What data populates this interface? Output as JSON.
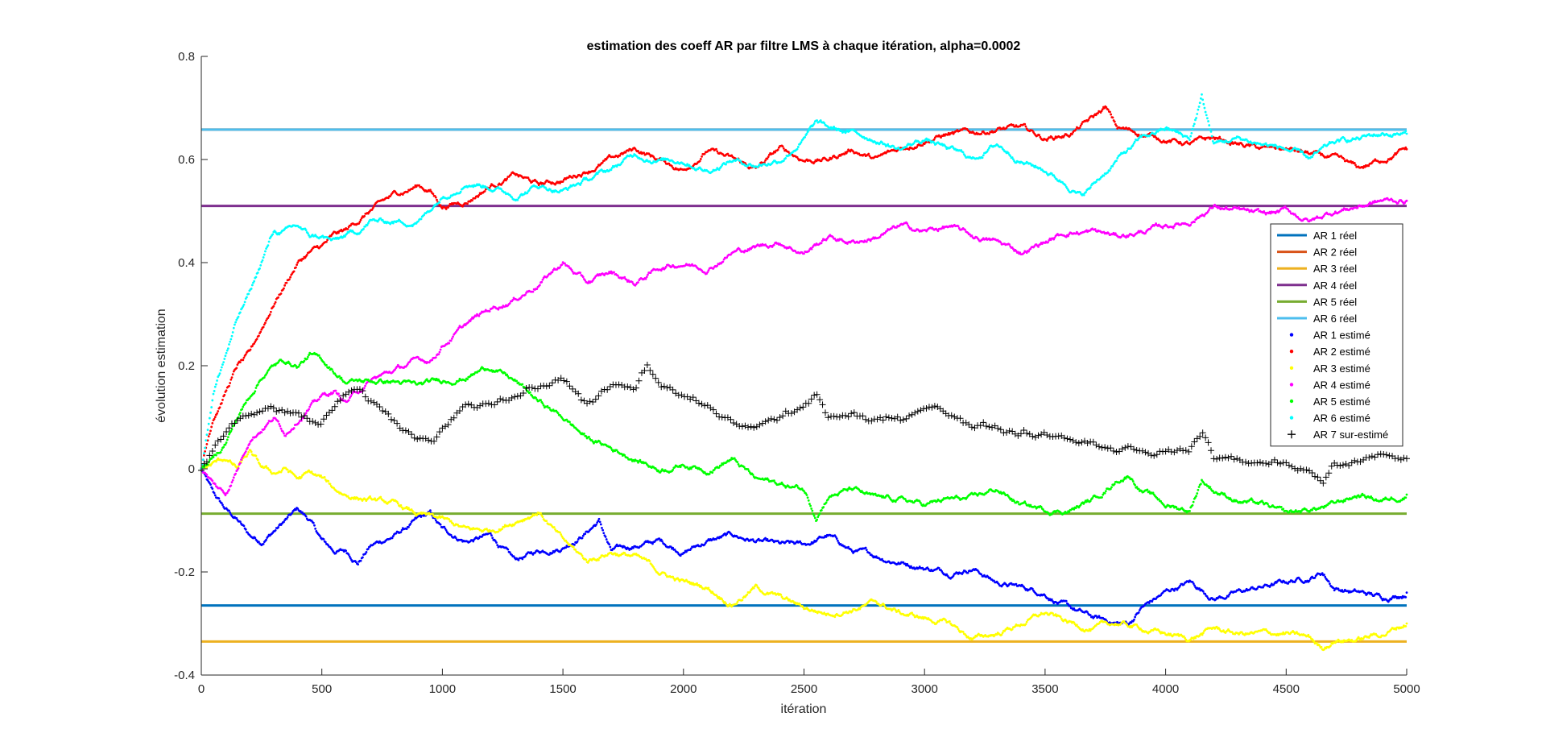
{
  "chart_data": {
    "type": "line",
    "title": "estimation des coeff AR par filtre LMS à chaque itération, alpha=0.0002",
    "xlabel": "itération",
    "ylabel": "évolution estimation",
    "xlim": [
      0,
      5000
    ],
    "ylim": [
      -0.4,
      0.8
    ],
    "xticks": [
      0,
      500,
      1000,
      1500,
      2000,
      2500,
      3000,
      3500,
      4000,
      4500,
      5000
    ],
    "yticks": [
      -0.4,
      -0.2,
      0,
      0.2,
      0.4,
      0.6,
      0.8
    ],
    "grid": false,
    "legend_position": "right",
    "true_lines": [
      {
        "name": "AR 1 réel",
        "value": -0.265,
        "color": "#0072BD"
      },
      {
        "name": "AR 2 réel",
        "value": 0.658,
        "color": "#D95319"
      },
      {
        "name": "AR 3 réel",
        "value": -0.335,
        "color": "#EDB120"
      },
      {
        "name": "AR 4 réel",
        "value": 0.51,
        "color": "#7E2F8E"
      },
      {
        "name": "AR 5 réel",
        "value": -0.087,
        "color": "#77AC30"
      },
      {
        "name": "AR 6 réel",
        "value": 0.658,
        "color": "#4DBEEE"
      }
    ],
    "estimated_series": [
      {
        "name": "AR 1 estimé",
        "color": "#0000FF",
        "marker": "dot",
        "x": [
          0,
          50,
          100,
          150,
          200,
          250,
          300,
          350,
          400,
          450,
          500,
          550,
          600,
          650,
          700,
          800,
          900,
          950,
          1000,
          1100,
          1200,
          1300,
          1400,
          1500,
          1600,
          1650,
          1700,
          1800,
          1900,
          2000,
          2100,
          2200,
          2300,
          2400,
          2500,
          2600,
          2700,
          2800,
          2900,
          3000,
          3100,
          3200,
          3300,
          3400,
          3500,
          3600,
          3700,
          3800,
          3850,
          3900,
          4000,
          4100,
          4200,
          4300,
          4400,
          4500,
          4600,
          4650,
          4700,
          4800,
          4900,
          5000
        ],
        "y": [
          0,
          -0.05,
          -0.08,
          -0.1,
          -0.13,
          -0.14,
          -0.12,
          -0.1,
          -0.08,
          -0.1,
          -0.14,
          -0.16,
          -0.16,
          -0.18,
          -0.15,
          -0.13,
          -0.1,
          -0.09,
          -0.12,
          -0.14,
          -0.13,
          -0.18,
          -0.16,
          -0.15,
          -0.12,
          -0.1,
          -0.16,
          -0.15,
          -0.14,
          -0.16,
          -0.14,
          -0.13,
          -0.14,
          -0.15,
          -0.15,
          -0.13,
          -0.16,
          -0.17,
          -0.18,
          -0.19,
          -0.2,
          -0.19,
          -0.22,
          -0.23,
          -0.24,
          -0.27,
          -0.29,
          -0.3,
          -0.3,
          -0.27,
          -0.24,
          -0.22,
          -0.25,
          -0.24,
          -0.23,
          -0.22,
          -0.21,
          -0.2,
          -0.23,
          -0.24,
          -0.25,
          -0.24
        ]
      },
      {
        "name": "AR 2 estimé",
        "color": "#FF0000",
        "marker": "dot",
        "x": [
          0,
          50,
          100,
          150,
          200,
          250,
          300,
          350,
          400,
          450,
          500,
          550,
          600,
          650,
          700,
          800,
          900,
          950,
          1000,
          1100,
          1200,
          1300,
          1400,
          1500,
          1600,
          1700,
          1800,
          1900,
          2000,
          2100,
          2200,
          2300,
          2400,
          2500,
          2600,
          2700,
          2800,
          2900,
          3000,
          3100,
          3200,
          3300,
          3400,
          3500,
          3600,
          3700,
          3750,
          3800,
          3900,
          4000,
          4100,
          4200,
          4300,
          4400,
          4500,
          4600,
          4700,
          4800,
          4850,
          4900,
          5000
        ],
        "y": [
          0,
          0.1,
          0.15,
          0.2,
          0.22,
          0.27,
          0.32,
          0.36,
          0.4,
          0.42,
          0.43,
          0.45,
          0.46,
          0.48,
          0.5,
          0.53,
          0.55,
          0.54,
          0.51,
          0.52,
          0.55,
          0.57,
          0.55,
          0.56,
          0.58,
          0.6,
          0.62,
          0.6,
          0.58,
          0.62,
          0.6,
          0.58,
          0.62,
          0.6,
          0.6,
          0.62,
          0.6,
          0.62,
          0.64,
          0.65,
          0.65,
          0.66,
          0.66,
          0.64,
          0.65,
          0.68,
          0.7,
          0.66,
          0.65,
          0.64,
          0.63,
          0.64,
          0.63,
          0.62,
          0.62,
          0.61,
          0.6,
          0.58,
          0.59,
          0.6,
          0.62
        ]
      },
      {
        "name": "AR 3 estimé",
        "color": "#FFFF00",
        "marker": "dot",
        "x": [
          0,
          50,
          100,
          150,
          200,
          250,
          300,
          350,
          400,
          450,
          500,
          550,
          600,
          700,
          800,
          900,
          1000,
          1100,
          1200,
          1300,
          1400,
          1500,
          1600,
          1700,
          1800,
          1900,
          2000,
          2100,
          2200,
          2300,
          2400,
          2500,
          2600,
          2700,
          2800,
          2900,
          3000,
          3100,
          3200,
          3300,
          3400,
          3500,
          3600,
          3700,
          3800,
          3900,
          4000,
          4100,
          4200,
          4300,
          4400,
          4500,
          4600,
          4650,
          4700,
          4800,
          4900,
          5000
        ],
        "y": [
          0,
          0.01,
          0.02,
          0.0,
          0.03,
          0.0,
          -0.01,
          0.0,
          -0.02,
          -0.01,
          -0.02,
          -0.04,
          -0.05,
          -0.06,
          -0.07,
          -0.09,
          -0.1,
          -0.12,
          -0.12,
          -0.1,
          -0.08,
          -0.14,
          -0.18,
          -0.16,
          -0.17,
          -0.2,
          -0.22,
          -0.23,
          -0.26,
          -0.23,
          -0.25,
          -0.27,
          -0.28,
          -0.27,
          -0.26,
          -0.28,
          -0.29,
          -0.3,
          -0.33,
          -0.32,
          -0.3,
          -0.28,
          -0.3,
          -0.31,
          -0.3,
          -0.31,
          -0.32,
          -0.33,
          -0.31,
          -0.32,
          -0.32,
          -0.32,
          -0.33,
          -0.35,
          -0.33,
          -0.33,
          -0.32,
          -0.3
        ]
      },
      {
        "name": "AR 4 estimé",
        "color": "#FF00FF",
        "marker": "dot",
        "x": [
          0,
          50,
          100,
          150,
          200,
          250,
          300,
          350,
          400,
          450,
          500,
          550,
          600,
          700,
          800,
          900,
          950,
          1000,
          1100,
          1200,
          1300,
          1400,
          1500,
          1600,
          1700,
          1800,
          1900,
          2000,
          2100,
          2200,
          2300,
          2400,
          2500,
          2600,
          2700,
          2800,
          2900,
          3000,
          3100,
          3200,
          3300,
          3400,
          3500,
          3600,
          3700,
          3800,
          3900,
          4000,
          4100,
          4200,
          4300,
          4400,
          4500,
          4600,
          4700,
          4800,
          4900,
          5000
        ],
        "y": [
          0,
          -0.03,
          -0.05,
          0.0,
          0.06,
          0.08,
          0.1,
          0.07,
          0.1,
          0.12,
          0.14,
          0.15,
          0.13,
          0.17,
          0.19,
          0.21,
          0.21,
          0.24,
          0.28,
          0.31,
          0.33,
          0.36,
          0.4,
          0.36,
          0.38,
          0.36,
          0.39,
          0.4,
          0.39,
          0.42,
          0.43,
          0.44,
          0.42,
          0.45,
          0.44,
          0.45,
          0.47,
          0.46,
          0.47,
          0.45,
          0.44,
          0.42,
          0.44,
          0.46,
          0.46,
          0.45,
          0.46,
          0.47,
          0.48,
          0.51,
          0.5,
          0.49,
          0.5,
          0.48,
          0.5,
          0.51,
          0.52,
          0.52
        ]
      },
      {
        "name": "AR 5 estimé",
        "color": "#00FF00",
        "marker": "dot",
        "x": [
          0,
          50,
          100,
          150,
          200,
          250,
          300,
          350,
          400,
          450,
          500,
          550,
          600,
          700,
          800,
          900,
          1000,
          1100,
          1200,
          1300,
          1400,
          1500,
          1600,
          1700,
          1800,
          1900,
          2000,
          2100,
          2200,
          2300,
          2400,
          2500,
          2550,
          2600,
          2700,
          2800,
          2900,
          3000,
          3100,
          3200,
          3300,
          3400,
          3500,
          3600,
          3700,
          3800,
          3850,
          3900,
          4000,
          4100,
          4150,
          4200,
          4300,
          4400,
          4500,
          4600,
          4700,
          4800,
          4900,
          5000
        ],
        "y": [
          0,
          0.02,
          0.05,
          0.1,
          0.14,
          0.18,
          0.2,
          0.21,
          0.2,
          0.22,
          0.21,
          0.19,
          0.17,
          0.17,
          0.17,
          0.16,
          0.17,
          0.18,
          0.2,
          0.17,
          0.13,
          0.1,
          0.06,
          0.04,
          0.02,
          0.0,
          0.01,
          0.0,
          0.02,
          -0.02,
          -0.03,
          -0.04,
          -0.09,
          -0.05,
          -0.04,
          -0.06,
          -0.06,
          -0.07,
          -0.06,
          -0.06,
          -0.04,
          -0.07,
          -0.08,
          -0.08,
          -0.06,
          -0.02,
          -0.01,
          -0.04,
          -0.07,
          -0.08,
          -0.02,
          -0.04,
          -0.06,
          -0.07,
          -0.09,
          -0.08,
          -0.07,
          -0.05,
          -0.06,
          -0.05
        ]
      },
      {
        "name": "AR 6 estimé",
        "color": "#00FFFF",
        "marker": "dot",
        "x": [
          0,
          50,
          100,
          150,
          200,
          250,
          300,
          350,
          400,
          450,
          500,
          550,
          600,
          650,
          700,
          800,
          900,
          1000,
          1100,
          1200,
          1300,
          1400,
          1500,
          1600,
          1700,
          1800,
          1900,
          2000,
          2100,
          2200,
          2300,
          2400,
          2500,
          2550,
          2600,
          2700,
          2800,
          2900,
          3000,
          3100,
          3200,
          3300,
          3400,
          3500,
          3600,
          3650,
          3700,
          3800,
          3900,
          4000,
          4100,
          4150,
          4200,
          4300,
          4400,
          4500,
          4600,
          4700,
          4800,
          4900,
          5000
        ],
        "y": [
          0,
          0.15,
          0.22,
          0.29,
          0.34,
          0.4,
          0.46,
          0.46,
          0.47,
          0.45,
          0.45,
          0.44,
          0.45,
          0.46,
          0.48,
          0.48,
          0.48,
          0.53,
          0.56,
          0.55,
          0.53,
          0.55,
          0.54,
          0.56,
          0.58,
          0.61,
          0.6,
          0.6,
          0.58,
          0.6,
          0.59,
          0.6,
          0.64,
          0.67,
          0.66,
          0.65,
          0.64,
          0.62,
          0.64,
          0.62,
          0.6,
          0.63,
          0.6,
          0.58,
          0.55,
          0.53,
          0.55,
          0.6,
          0.64,
          0.66,
          0.64,
          0.72,
          0.63,
          0.64,
          0.63,
          0.62,
          0.6,
          0.63,
          0.64,
          0.65,
          0.65
        ]
      },
      {
        "name": "AR 7 sur-estimé",
        "color": "#000000",
        "marker": "plus",
        "x": [
          0,
          50,
          100,
          150,
          200,
          250,
          300,
          350,
          400,
          450,
          500,
          550,
          600,
          650,
          700,
          800,
          900,
          950,
          1000,
          1100,
          1200,
          1300,
          1400,
          1500,
          1600,
          1700,
          1800,
          1850,
          1900,
          2000,
          2100,
          2200,
          2300,
          2400,
          2500,
          2550,
          2600,
          2700,
          2800,
          2900,
          3000,
          3050,
          3100,
          3200,
          3300,
          3400,
          3500,
          3600,
          3700,
          3800,
          3900,
          4000,
          4100,
          4150,
          4200,
          4300,
          4400,
          4500,
          4600,
          4650,
          4700,
          4800,
          4900,
          5000
        ],
        "y": [
          0,
          0.04,
          0.07,
          0.09,
          0.1,
          0.11,
          0.12,
          0.11,
          0.1,
          0.09,
          0.09,
          0.12,
          0.14,
          0.15,
          0.13,
          0.09,
          0.06,
          0.05,
          0.08,
          0.13,
          0.13,
          0.14,
          0.16,
          0.17,
          0.13,
          0.16,
          0.15,
          0.2,
          0.16,
          0.14,
          0.12,
          0.09,
          0.08,
          0.1,
          0.12,
          0.15,
          0.1,
          0.1,
          0.09,
          0.1,
          0.12,
          0.13,
          0.11,
          0.08,
          0.08,
          0.07,
          0.07,
          0.06,
          0.05,
          0.04,
          0.04,
          0.03,
          0.04,
          0.07,
          0.02,
          0.02,
          0.01,
          0.01,
          0.0,
          -0.03,
          0.01,
          0.01,
          0.03,
          0.02
        ]
      }
    ]
  }
}
